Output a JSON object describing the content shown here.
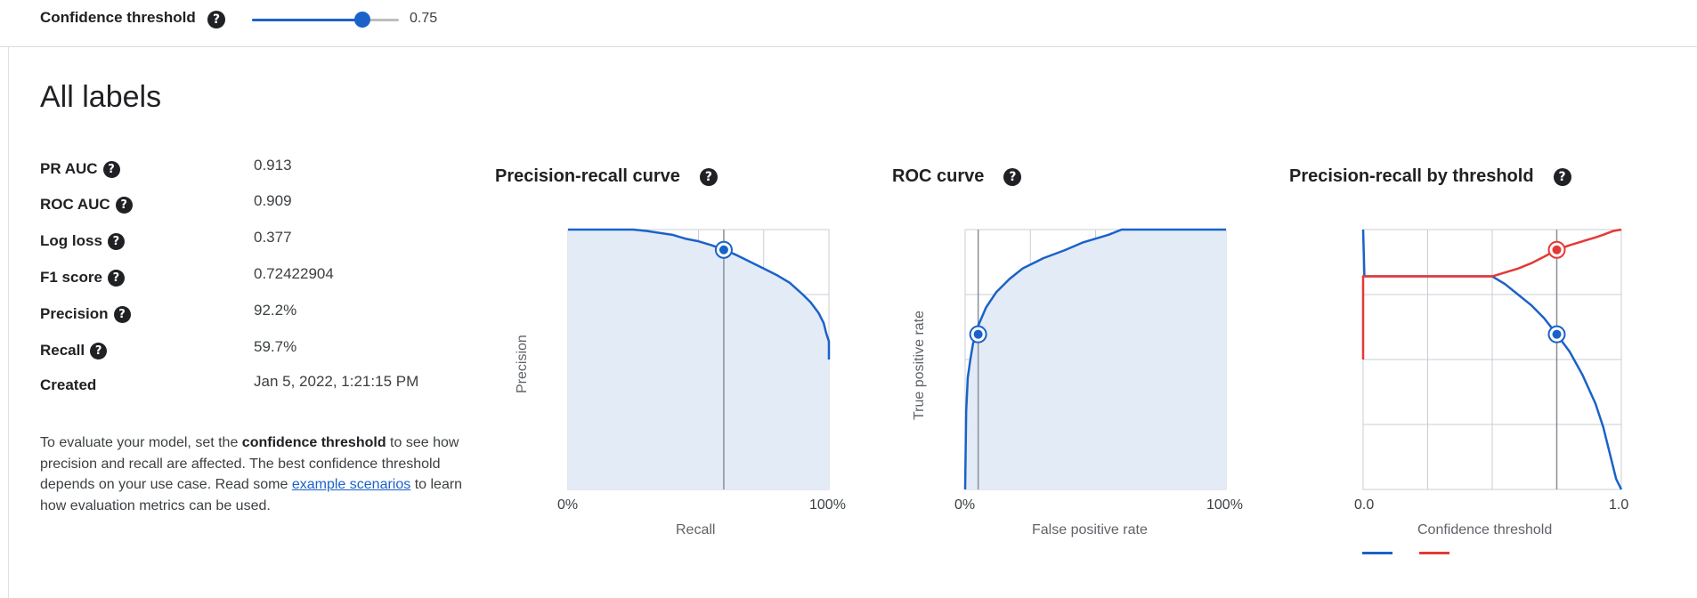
{
  "threshold_bar": {
    "label": "Confidence threshold",
    "help_icon": "help-icon",
    "slider_value": 0.75,
    "value_text": "0.75"
  },
  "section_title": "All labels",
  "metrics": [
    {
      "name": "PR AUC",
      "value": "0.913"
    },
    {
      "name": "ROC AUC",
      "value": "0.909"
    },
    {
      "name": "Log loss",
      "value": "0.377"
    },
    {
      "name": "F1 score",
      "value": "0.72422904"
    },
    {
      "name": "Precision",
      "value": "92.2%"
    },
    {
      "name": "Recall",
      "value": "59.7%"
    },
    {
      "name": "Created",
      "value": "Jan 5, 2022, 1:21:15 PM"
    }
  ],
  "description": {
    "text_1": "To evaluate your model, set the ",
    "bold": "confidence threshold",
    "text_2": " to see how precision and recall are affected. The best confidence threshold depends on your use case. Read some ",
    "link": "example scenarios",
    "text_3": " to learn how evaluation metrics can be used."
  },
  "colors": {
    "accent": "#1a62c9",
    "precision_line": "#e53935",
    "fill": "#e3ebf7",
    "grid": "#c8cdd3"
  },
  "chart_data": [
    {
      "type": "area",
      "title": "Precision-recall curve",
      "xlabel": "Recall",
      "ylabel": "Precision",
      "x_ticks": [
        "0%",
        "100%"
      ],
      "xlim": [
        0,
        1
      ],
      "ylim": [
        0,
        1
      ],
      "grid": true,
      "series": [
        {
          "x": [
            0,
            0.25,
            0.3,
            0.4,
            0.45,
            0.5,
            0.55,
            0.6,
            0.65,
            0.7,
            0.75,
            0.8,
            0.85,
            0.9,
            0.93,
            0.96,
            0.98,
            0.99,
            1.0,
            1.0
          ],
          "y": [
            1.0,
            1.0,
            0.995,
            0.98,
            0.965,
            0.955,
            0.94,
            0.922,
            0.9,
            0.875,
            0.85,
            0.825,
            0.795,
            0.75,
            0.72,
            0.68,
            0.64,
            0.6,
            0.57,
            0.5
          ]
        }
      ],
      "marker": {
        "x": 0.597,
        "y": 0.922
      }
    },
    {
      "type": "area",
      "title": "ROC curve",
      "xlabel": "False positive rate",
      "ylabel": "True positive rate",
      "x_ticks": [
        "0%",
        "100%"
      ],
      "xlim": [
        0,
        1
      ],
      "ylim": [
        0,
        1
      ],
      "grid": true,
      "series": [
        {
          "x": [
            0,
            0.004,
            0.01,
            0.02,
            0.03,
            0.05,
            0.08,
            0.12,
            0.17,
            0.22,
            0.3,
            0.38,
            0.45,
            0.55,
            0.6,
            0.8,
            1.0
          ],
          "y": [
            0,
            0.3,
            0.43,
            0.5,
            0.56,
            0.63,
            0.7,
            0.76,
            0.81,
            0.85,
            0.89,
            0.92,
            0.95,
            0.98,
            1.0,
            1.0,
            1.0
          ]
        }
      ],
      "marker": {
        "x": 0.05,
        "y": 0.597
      }
    },
    {
      "type": "line",
      "title": "Precision-recall by threshold",
      "xlabel": "Confidence threshold",
      "x_ticks": [
        "0.0",
        "1.0"
      ],
      "xlim": [
        0,
        1
      ],
      "ylim": [
        0,
        1
      ],
      "grid": true,
      "series": [
        {
          "color": "#1a62c9",
          "x": [
            0,
            0.005,
            0.01,
            0.5,
            0.55,
            0.6,
            0.65,
            0.7,
            0.75,
            0.8,
            0.85,
            0.9,
            0.93,
            0.96,
            0.98,
            1.0
          ],
          "y": [
            1.0,
            0.82,
            0.82,
            0.82,
            0.79,
            0.75,
            0.71,
            0.66,
            0.597,
            0.53,
            0.44,
            0.33,
            0.24,
            0.12,
            0.04,
            0.0
          ]
        },
        {
          "color": "#e53935",
          "x": [
            0,
            0,
            0.01,
            0.5,
            0.55,
            0.6,
            0.65,
            0.7,
            0.75,
            0.8,
            0.85,
            0.9,
            0.93,
            0.97,
            1.0
          ],
          "y": [
            0.5,
            0.82,
            0.82,
            0.82,
            0.835,
            0.85,
            0.87,
            0.895,
            0.922,
            0.94,
            0.955,
            0.97,
            0.98,
            0.995,
            1.0
          ]
        }
      ],
      "markers": [
        {
          "x": 0.75,
          "y": 0.922,
          "color": "#e53935"
        },
        {
          "x": 0.75,
          "y": 0.597,
          "color": "#1a62c9"
        }
      ]
    }
  ]
}
